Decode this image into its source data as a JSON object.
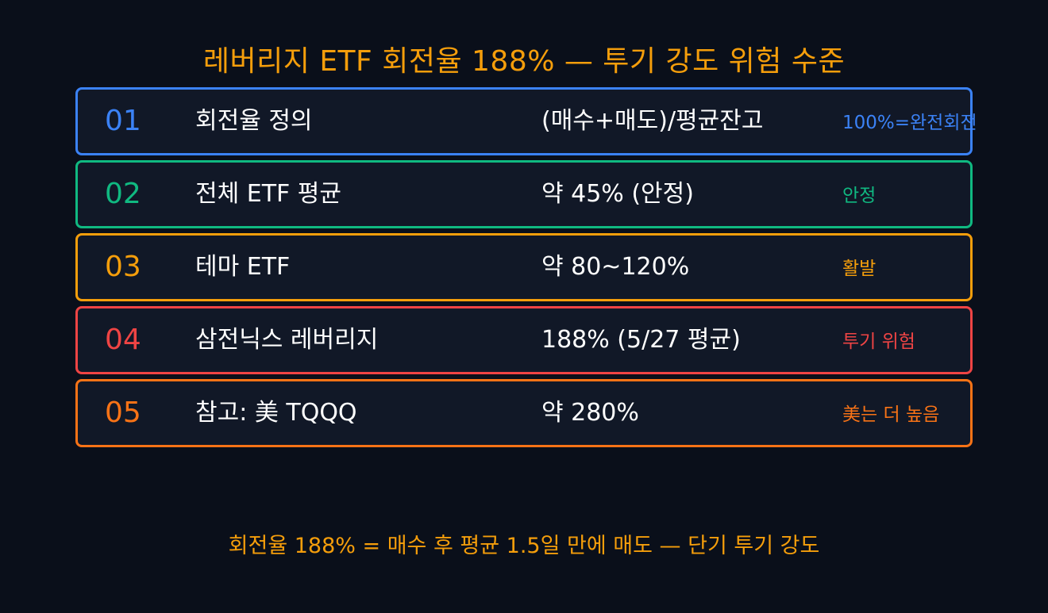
{
  "title": "레버리지 ETF 회전율 188% — 투기 강도 위험 수준",
  "rows": [
    {
      "num": "01",
      "label": "회전율 정의",
      "value": "(매수+매도)/평균잔고",
      "note": "100%=완전회전",
      "color": "#3b82f6"
    },
    {
      "num": "02",
      "label": "전체 ETF 평균",
      "value": "약 45% (안정)",
      "note": "안정",
      "color": "#10b981"
    },
    {
      "num": "03",
      "label": "테마 ETF",
      "value": "약 80~120%",
      "note": "활발",
      "color": "#f59e0b"
    },
    {
      "num": "04",
      "label": "삼전닉스 레버리지",
      "value": "188% (5/27 평균)",
      "note": "투기 위험",
      "color": "#ef4444"
    },
    {
      "num": "05",
      "label": "참고: 美 TQQQ",
      "value": "약 280%",
      "note": "美는 더 높음",
      "color": "#f97316"
    }
  ],
  "footer": "회전율 188% = 매수 후 평균 1.5일 만에 매도 — 단기 투기 강도"
}
